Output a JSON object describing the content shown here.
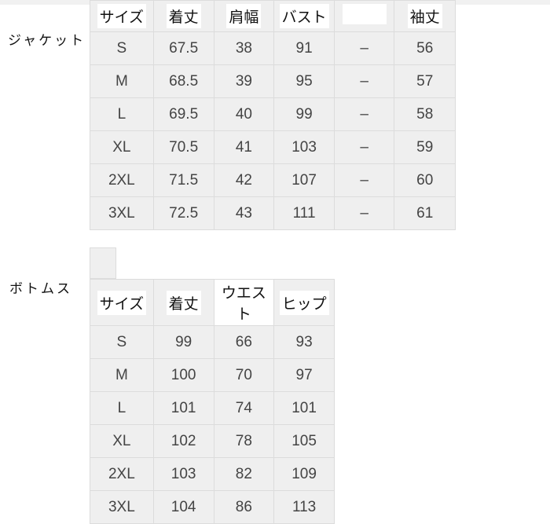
{
  "jacket": {
    "label": "ジャケット",
    "headers": [
      "サイズ",
      "着丈",
      "肩幅",
      "バスト",
      "",
      "袖丈"
    ],
    "rows": [
      [
        "S",
        "67.5",
        "38",
        "91",
        "–",
        "56"
      ],
      [
        "M",
        "68.5",
        "39",
        "95",
        "–",
        "57"
      ],
      [
        "L",
        "69.5",
        "40",
        "99",
        "–",
        "58"
      ],
      [
        "XL",
        "70.5",
        "41",
        "103",
        "–",
        "59"
      ],
      [
        "2XL",
        "71.5",
        "42",
        "107",
        "–",
        "60"
      ],
      [
        "3XL",
        "72.5",
        "43",
        "111",
        "–",
        "61"
      ]
    ]
  },
  "bottoms": {
    "label": "ボトムス",
    "headers": [
      "サイズ",
      "着丈",
      "ウエスト",
      "ヒップ"
    ],
    "rows": [
      [
        "S",
        "99",
        "66",
        "93"
      ],
      [
        "M",
        "100",
        "70",
        "97"
      ],
      [
        "L",
        "101",
        "74",
        "101"
      ],
      [
        "XL",
        "102",
        "78",
        "105"
      ],
      [
        "2XL",
        "103",
        "82",
        "109"
      ],
      [
        "3XL",
        "104",
        "86",
        "113"
      ]
    ]
  }
}
